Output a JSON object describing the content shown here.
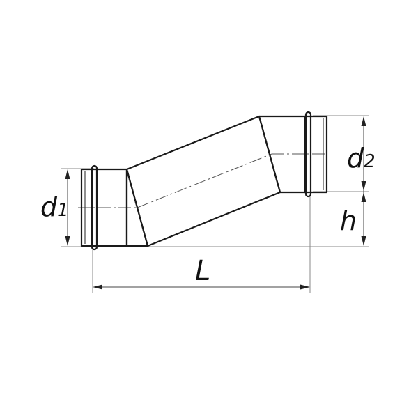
{
  "labels": {
    "d1": {
      "main": "d",
      "sub": "1"
    },
    "d2": {
      "main": "d",
      "sub": "2"
    },
    "h": "h",
    "L": "L"
  },
  "colors": {
    "line": "#1a1a1a",
    "extension": "#888888",
    "background": "#ffffff"
  }
}
